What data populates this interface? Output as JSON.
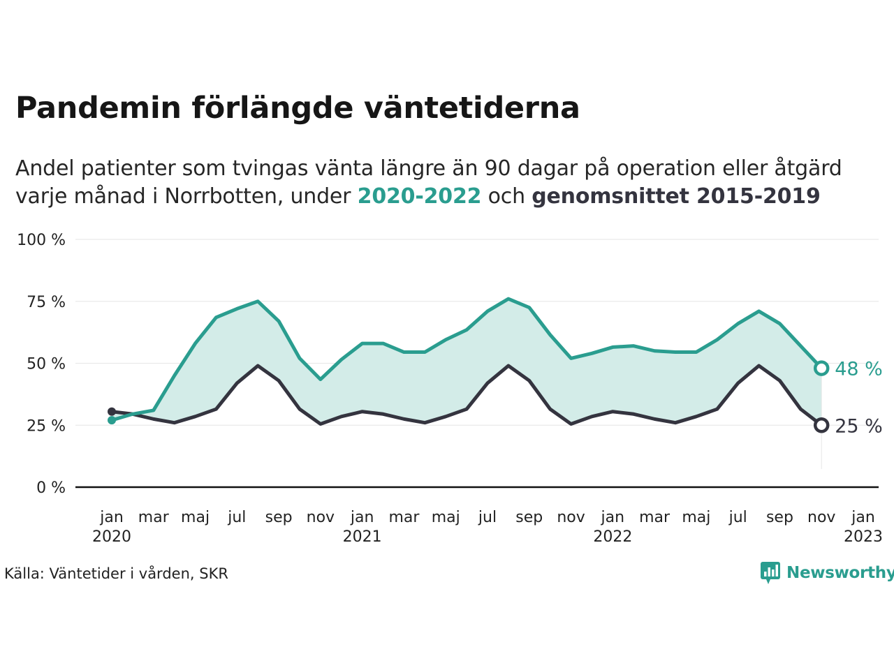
{
  "title": "Pandemin förlängde väntetiderna",
  "subtitle": {
    "line1": "Andel patienter som tvingas vänta längre än 90 dagar på operation eller åtgärd",
    "line2_pre": "varje månad i Norrbotten, under ",
    "line2_teal": "2020-2022",
    "line2_mid": " och ",
    "line2_dark": "genomsnittet 2015-2019"
  },
  "source": "Källa: Väntetider i vården, SKR",
  "logo": {
    "text": "Newsworthy",
    "icon": "newsworthy-chart-icon"
  },
  "colors": {
    "teal": "#2a9d8f",
    "dark": "#34343f",
    "area": "#d3ece8",
    "grid": "#e6e6e6"
  },
  "chart_data": {
    "type": "line",
    "ylim": [
      0,
      100
    ],
    "yticks": [
      {
        "value": 0,
        "label": "0 %"
      },
      {
        "value": 25,
        "label": "25 %"
      },
      {
        "value": 50,
        "label": "50 %"
      },
      {
        "value": 75,
        "label": "75 %"
      },
      {
        "value": 100,
        "label": "100 %"
      }
    ],
    "xlim": [
      "2020-01",
      "2023-01"
    ],
    "xticks": [
      {
        "x": "2020-01",
        "label": "jan",
        "year": "2020"
      },
      {
        "x": "2020-03",
        "label": "mar"
      },
      {
        "x": "2020-05",
        "label": "maj"
      },
      {
        "x": "2020-07",
        "label": "jul"
      },
      {
        "x": "2020-09",
        "label": "sep"
      },
      {
        "x": "2020-11",
        "label": "nov"
      },
      {
        "x": "2021-01",
        "label": "jan",
        "year": "2021"
      },
      {
        "x": "2021-03",
        "label": "mar"
      },
      {
        "x": "2021-05",
        "label": "maj"
      },
      {
        "x": "2021-07",
        "label": "jul"
      },
      {
        "x": "2021-09",
        "label": "sep"
      },
      {
        "x": "2021-11",
        "label": "nov"
      },
      {
        "x": "2022-01",
        "label": "jan",
        "year": "2022"
      },
      {
        "x": "2022-03",
        "label": "mar"
      },
      {
        "x": "2022-05",
        "label": "maj"
      },
      {
        "x": "2022-07",
        "label": "jul"
      },
      {
        "x": "2022-09",
        "label": "sep"
      },
      {
        "x": "2022-11",
        "label": "nov"
      },
      {
        "x": "2023-01",
        "label": "jan",
        "year": "2023"
      }
    ],
    "x": [
      "2020-01",
      "2020-02",
      "2020-03",
      "2020-04",
      "2020-05",
      "2020-06",
      "2020-07",
      "2020-08",
      "2020-09",
      "2020-10",
      "2020-11",
      "2020-12",
      "2021-01",
      "2021-02",
      "2021-03",
      "2021-04",
      "2021-05",
      "2021-06",
      "2021-07",
      "2021-08",
      "2021-09",
      "2021-10",
      "2021-11",
      "2021-12",
      "2022-01",
      "2022-02",
      "2022-03",
      "2022-04",
      "2022-05",
      "2022-06",
      "2022-07",
      "2022-08",
      "2022-09",
      "2022-10",
      "2022-11"
    ],
    "series": [
      {
        "name": "2020-2022",
        "color": "#2a9d8f",
        "end_label": "48 %",
        "values": [
          27,
          29.5,
          31,
          45,
          58,
          68.5,
          72,
          75,
          67,
          52,
          43.5,
          51.5,
          58,
          58,
          54.5,
          54.5,
          59.5,
          63.5,
          71,
          76,
          72.5,
          61.5,
          52,
          54,
          56.5,
          57,
          55,
          54.5,
          54.5,
          59.5,
          66,
          71,
          66,
          57,
          48
        ]
      },
      {
        "name": "genomsnittet 2015-2019",
        "color": "#34343f",
        "end_label": "25 %",
        "values": [
          30.5,
          29.5,
          27.5,
          26,
          28.5,
          31.5,
          42,
          49,
          43,
          31.5,
          25.5,
          28.5,
          30.5,
          29.5,
          27.5,
          26,
          28.5,
          31.5,
          42,
          49,
          43,
          31.5,
          25.5,
          28.5,
          30.5,
          29.5,
          27.5,
          26,
          28.5,
          31.5,
          42,
          49,
          43,
          31.5,
          25
        ]
      }
    ]
  }
}
